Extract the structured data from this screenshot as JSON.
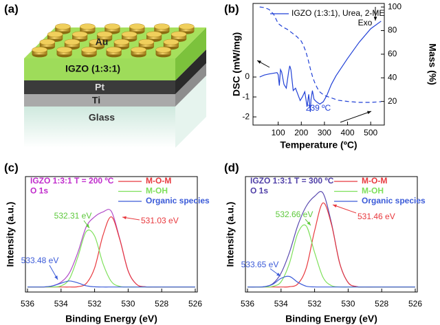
{
  "schematic": {
    "panel": "(a)",
    "labels": {
      "au": "Au",
      "igzo": "IGZO (1:3:1)",
      "pt": "Pt",
      "ti": "Ti",
      "glass": "Glass"
    }
  },
  "chart_data": [
    {
      "type": "line",
      "panel": "(b)",
      "xlabel": "Temperature (ºC)",
      "ylabel": "DSC (mW/mg)",
      "y2label": "Mass (%)",
      "xlim": [
        0,
        550
      ],
      "xticks": [
        100,
        200,
        300,
        400,
        500
      ],
      "ylim": [
        -2.41,
        3.69
      ],
      "yticks": [
        -2,
        -1,
        0
      ],
      "y2lim": [
        0,
        103
      ],
      "y2ticks": [
        20,
        40,
        60,
        80,
        100
      ],
      "series": [
        {
          "name": "IGZO (1:3:1), Urea, 2-ME",
          "color": "#1f3fd6",
          "x": [
            20,
            40,
            60,
            80,
            95,
            100,
            105,
            110,
            115,
            125,
            135,
            145,
            150,
            155,
            165,
            175,
            185,
            195,
            205,
            215,
            225,
            232,
            236,
            239,
            242,
            248,
            255,
            265,
            280,
            295,
            310,
            330,
            350,
            400,
            450,
            500,
            545
          ],
          "values": [
            0,
            0.1,
            0.15,
            0.19,
            0.22,
            0.12,
            -0.43,
            0.37,
            0.25,
            -0.37,
            -0.56,
            0.25,
            0.56,
            0.37,
            -0.68,
            -0.56,
            -0.87,
            -1.18,
            -0.99,
            -0.74,
            -1.49,
            -0.87,
            -1.36,
            -1.75,
            -1.12,
            -0.68,
            -1.12,
            -1.24,
            -1.36,
            -1.24,
            -0.93,
            -0.37,
            0.06,
            0.93,
            1.74,
            2.42,
            2.8
          ]
        },
        {
          "color": "#1f3fd6",
          "dash": true,
          "axis": "y2",
          "x": [
            20,
            40,
            60,
            80,
            100,
            120,
            140,
            160,
            180,
            200,
            210,
            220,
            230,
            240,
            250,
            260,
            270,
            280,
            300,
            330,
            360,
            400,
            450,
            500,
            545
          ],
          "values": [
            100,
            99.5,
            98,
            94,
            86,
            83,
            81,
            78,
            75,
            71,
            67,
            62,
            55,
            47,
            40,
            35,
            31,
            28,
            25,
            23,
            21,
            20,
            19.2,
            19.2,
            19.8
          ]
        }
      ],
      "annotations": [
        {
          "text": "239 ºC",
          "color": "#1f3fd6"
        },
        {
          "text": "Exo",
          "color": "#000000"
        }
      ]
    },
    {
      "type": "line",
      "panel": "(c)",
      "title": "IGZO 1:3:1 T = 200 ºC",
      "subtitle": "O 1s",
      "title_color": "#c02ccc",
      "xlabel": "Binding Energy (eV)",
      "ylabel": "Intensity (a.u.)",
      "xlim": [
        536,
        526
      ],
      "xticks": [
        536,
        534,
        532,
        530,
        528,
        526
      ],
      "ylim": [
        0,
        115
      ],
      "x": [
        536,
        535.5,
        535,
        534.5,
        534,
        533.5,
        533,
        532.5,
        532,
        531.5,
        531,
        530.5,
        530,
        529.5,
        529,
        528.5,
        528,
        527.5,
        527,
        526.5,
        526
      ],
      "series": [
        {
          "color": "#b04ac8",
          "values": [
            5,
            5,
            5.1,
            6.2,
            9.9,
            19.1,
            39.3,
            64.9,
            74.9,
            79.8,
            80.3,
            53,
            21,
            7.7,
            5.2,
            5,
            5,
            5,
            5,
            5,
            5
          ]
        },
        {
          "name": "M-O-M",
          "color": "#e8383d",
          "values": [
            5,
            5,
            5,
            5,
            5,
            5,
            5.3,
            8.5,
            23.9,
            56.5,
            74.9,
            52.4,
            21,
            7.7,
            5.2,
            5,
            5,
            5,
            5,
            5,
            5
          ]
        },
        {
          "name": "M-OH",
          "color": "#7ee05a",
          "values": [
            5,
            5,
            5,
            5.1,
            6.1,
            13.1,
            34.9,
            60.2,
            55.8,
            28.3,
            10.4,
            5.6,
            5,
            5,
            5,
            5,
            5,
            5,
            5,
            5,
            5
          ]
        },
        {
          "name": "Organic species",
          "color": "#3a5ad8",
          "values": [
            5,
            5,
            5.1,
            6.1,
            8.8,
            11,
            9.1,
            6.2,
            5.2,
            5,
            5,
            5,
            5,
            5,
            5,
            5,
            5,
            5,
            5,
            5,
            5
          ]
        }
      ],
      "annotations": [
        {
          "text": "532.31 eV",
          "color": "#5cc83a"
        },
        {
          "text": "531.03 eV",
          "color": "#e8383d"
        },
        {
          "text": "533.48 eV",
          "color": "#3a5ad8"
        }
      ]
    },
    {
      "type": "line",
      "panel": "(d)",
      "title": "IGZO 1:3:1 T = 300 ºC",
      "subtitle": "O 1s",
      "title_color": "#5040a8",
      "xlabel": "Binding Energy (eV)",
      "ylabel": "Intensity (a.u.)",
      "xlim": [
        536,
        526
      ],
      "xticks": [
        536,
        534,
        532,
        530,
        528,
        526
      ],
      "ylim": [
        0,
        115
      ],
      "x": [
        536,
        535.5,
        535,
        534.5,
        534,
        533.5,
        533,
        532.5,
        532,
        531.5,
        531,
        530.5,
        530,
        529.5,
        529,
        528.5,
        528,
        527.5,
        527,
        526.5,
        526
      ],
      "series": [
        {
          "color": "#5a4ab0",
          "values": [
            5,
            5,
            5.3,
            8.2,
            18.8,
            39.4,
            66.4,
            85.4,
            95.4,
            98.5,
            69,
            28.5,
            9.4,
            5.4,
            5,
            5,
            5,
            5,
            5,
            5,
            5
          ]
        },
        {
          "name": "M-O-M",
          "color": "#e8383d",
          "values": [
            5,
            5,
            5,
            5,
            5,
            5.3,
            8.1,
            23.8,
            61,
            88.8,
            67.6,
            28.4,
            9.4,
            5.4,
            5,
            5,
            5,
            5,
            5,
            5,
            5
          ]
        },
        {
          "name": "M-OH",
          "color": "#7ee05a",
          "values": [
            5,
            5,
            5,
            5.6,
            10.2,
            28.6,
            58.6,
            65.8,
            39.4,
            14.7,
            6.4,
            5.1,
            5,
            5,
            5,
            5,
            5,
            5,
            5,
            5,
            5
          ]
        },
        {
          "name": "Organic species",
          "color": "#3a5ad8",
          "values": [
            5,
            5,
            5.3,
            7.6,
            13.6,
            15.5,
            9.7,
            5.8,
            5.1,
            5,
            5,
            5,
            5,
            5,
            5,
            5,
            5,
            5,
            5,
            5,
            5
          ]
        }
      ],
      "annotations": [
        {
          "text": "532.66 eV",
          "color": "#5cc83a"
        },
        {
          "text": "531.46 eV",
          "color": "#e8383d"
        },
        {
          "text": "533.65 eV",
          "color": "#3a5ad8"
        }
      ]
    }
  ]
}
